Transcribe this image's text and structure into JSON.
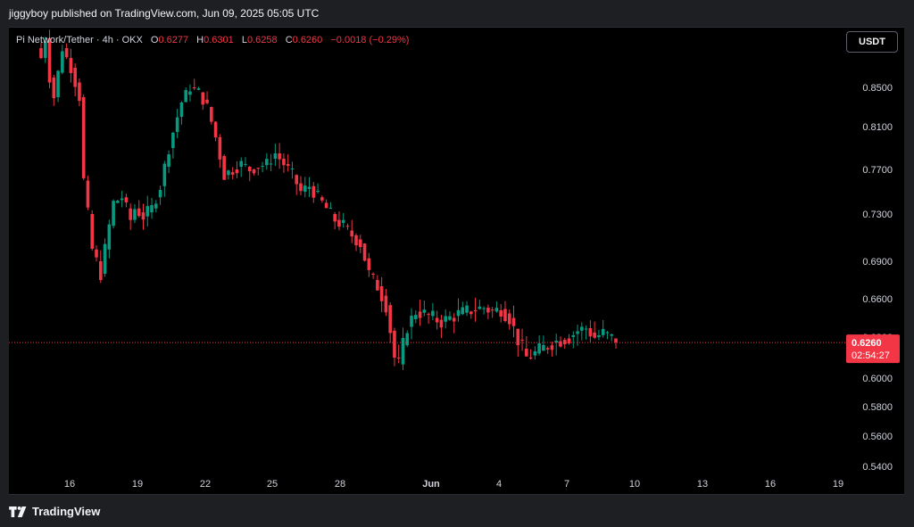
{
  "header": {
    "published": "jiggyboy published on TradingView.com, Jun 09, 2025 05:05 UTC"
  },
  "legend": {
    "symbol": "Pi Network/Tether · 4h · OKX",
    "o_label": "O",
    "o_value": "0.6277",
    "h_label": "H",
    "h_value": "0.6301",
    "l_label": "L",
    "l_value": "0.6258",
    "c_label": "C",
    "c_value": "0.6260",
    "change": "−0.0018 (−0.29%)"
  },
  "currency_button": "USDT",
  "price_tag": {
    "price": "0.6260",
    "countdown": "02:54:27"
  },
  "footer": {
    "brand": "TradingView"
  },
  "colors": {
    "up": "#089981",
    "down": "#f23645",
    "background": "#000000",
    "text": "#d1d4dc"
  },
  "chart_data": {
    "type": "candlestick",
    "y_ticks": [
      "0.8500",
      "0.8100",
      "0.7700",
      "0.7300",
      "0.6900",
      "0.6600",
      "0.6300",
      "0.6000",
      "0.5800",
      "0.5600",
      "0.5400"
    ],
    "x_ticks": [
      "16",
      "19",
      "22",
      "25",
      "28",
      "Jun",
      "4",
      "7",
      "10",
      "13",
      "16",
      "19"
    ],
    "ylim": [
      0.538,
      0.905
    ],
    "last_price": 0.626,
    "waypoints": [
      [
        0,
        0.88
      ],
      [
        1,
        0.9
      ],
      [
        2,
        0.86
      ],
      [
        3,
        0.84
      ],
      [
        5,
        0.89
      ],
      [
        7,
        0.87
      ],
      [
        9,
        0.84
      ],
      [
        10,
        0.76
      ],
      [
        11,
        0.73
      ],
      [
        12,
        0.7
      ],
      [
        13,
        0.69
      ],
      [
        14,
        0.68
      ],
      [
        15,
        0.7
      ],
      [
        16,
        0.72
      ],
      [
        17,
        0.74
      ],
      [
        19,
        0.745
      ],
      [
        21,
        0.725
      ],
      [
        22,
        0.735
      ],
      [
        24,
        0.728
      ],
      [
        26,
        0.735
      ],
      [
        28,
        0.755
      ],
      [
        30,
        0.79
      ],
      [
        33,
        0.835
      ],
      [
        35,
        0.85
      ],
      [
        37,
        0.845
      ],
      [
        39,
        0.83
      ],
      [
        41,
        0.8
      ],
      [
        43,
        0.765
      ],
      [
        45,
        0.77
      ],
      [
        47,
        0.775
      ],
      [
        49,
        0.77
      ],
      [
        51,
        0.773
      ],
      [
        53,
        0.775
      ],
      [
        55,
        0.785
      ],
      [
        57,
        0.775
      ],
      [
        59,
        0.765
      ],
      [
        61,
        0.75
      ],
      [
        63,
        0.755
      ],
      [
        65,
        0.745
      ],
      [
        67,
        0.735
      ],
      [
        69,
        0.725
      ],
      [
        71,
        0.72
      ],
      [
        73,
        0.712
      ],
      [
        75,
        0.705
      ],
      [
        77,
        0.68
      ],
      [
        79,
        0.67
      ],
      [
        81,
        0.655
      ],
      [
        83,
        0.615
      ],
      [
        84,
        0.61
      ],
      [
        86,
        0.638
      ],
      [
        88,
        0.65
      ],
      [
        90,
        0.648
      ],
      [
        92,
        0.645
      ],
      [
        94,
        0.642
      ],
      [
        96,
        0.645
      ],
      [
        98,
        0.648
      ],
      [
        100,
        0.65
      ],
      [
        102,
        0.652
      ],
      [
        104,
        0.653
      ],
      [
        106,
        0.65
      ],
      [
        108,
        0.652
      ],
      [
        110,
        0.645
      ],
      [
        112,
        0.628
      ],
      [
        114,
        0.615
      ],
      [
        116,
        0.618
      ],
      [
        118,
        0.622
      ],
      [
        120,
        0.626
      ],
      [
        122,
        0.628
      ],
      [
        124,
        0.63
      ],
      [
        126,
        0.635
      ],
      [
        128,
        0.637
      ],
      [
        130,
        0.63
      ],
      [
        132,
        0.633
      ],
      [
        134,
        0.629
      ],
      [
        135,
        0.626
      ]
    ]
  }
}
